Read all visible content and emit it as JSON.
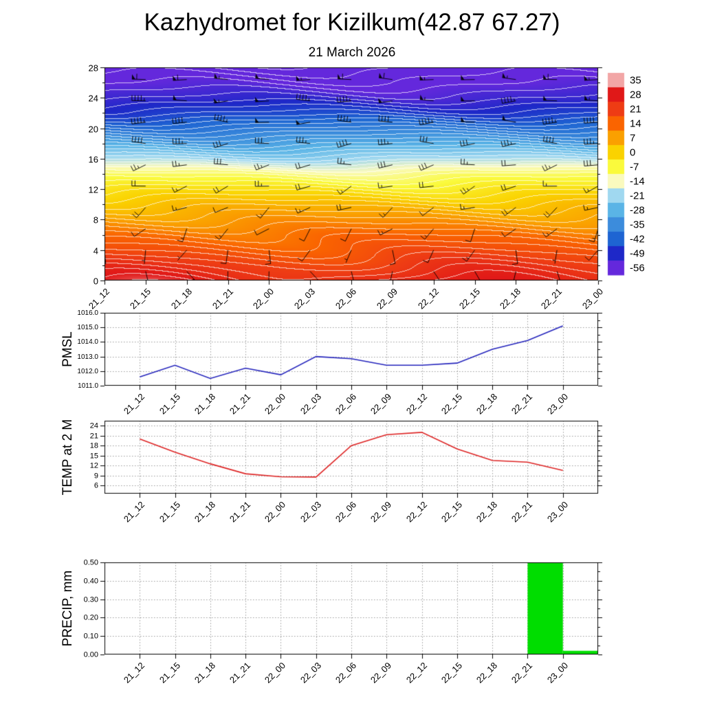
{
  "title": "Kazhydromet for Kizilkum(42.87 67.27)",
  "subtitle": "21 March 2026",
  "time_labels": [
    "21_12",
    "21_15",
    "21_18",
    "21_21",
    "22_00",
    "22_03",
    "22_06",
    "22_09",
    "22_12",
    "22_15",
    "22_18",
    "22_21",
    "23_00"
  ],
  "chart_data": [
    {
      "type": "heatmap",
      "name": "temp-height-cross-section",
      "ylabel": "",
      "x": [
        "21_12",
        "21_15",
        "21_18",
        "21_21",
        "22_00",
        "22_03",
        "22_06",
        "22_09",
        "22_12",
        "22_15",
        "22_18",
        "22_21",
        "23_00"
      ],
      "x_span_hours": 36,
      "ylim": [
        0,
        28
      ],
      "y_ticks": [
        0,
        4,
        8,
        12,
        16,
        20,
        24,
        28
      ],
      "y_minor_ticks": [
        2,
        6,
        10,
        14,
        18,
        22,
        26
      ],
      "colorbar": {
        "values": [
          35,
          28,
          21,
          14,
          7,
          0,
          -7,
          -14,
          -21,
          -28,
          -35,
          -42,
          -49,
          -56
        ],
        "colors": [
          "#f2a6a6",
          "#e01818",
          "#ee3c14",
          "#fa6400",
          "#faa000",
          "#fad200",
          "#fafa3c",
          "#fafabe",
          "#a0d8f0",
          "#5ab4e6",
          "#3c8cdc",
          "#1e64d2",
          "#1e28c8",
          "#6428dc"
        ]
      },
      "profile_heights_km": [
        0,
        2,
        4,
        6,
        8,
        10,
        12,
        14,
        15,
        16,
        18,
        20,
        22,
        24,
        26,
        28
      ],
      "profile_temps_c": [
        25.5,
        21.5,
        17,
        13,
        8,
        3,
        -3,
        -10,
        -15,
        -21,
        -30,
        -38,
        -46,
        -52,
        -56.5,
        -60
      ],
      "diurnal_amplitude_c": 3.5,
      "wave_amplitude_c": 1.8,
      "contour_interval_c": 2,
      "wind_levels": [
        {
          "height_km": 1.2,
          "dir_deg": 165,
          "speed_kt": 8
        },
        {
          "height_km": 4.0,
          "dir_deg": 195,
          "speed_kt": 10
        },
        {
          "height_km": 6.8,
          "dir_deg": 220,
          "speed_kt": 12
        },
        {
          "height_km": 9.6,
          "dir_deg": 240,
          "speed_kt": 15
        },
        {
          "height_km": 12.4,
          "dir_deg": 252,
          "speed_kt": 20
        },
        {
          "height_km": 15.2,
          "dir_deg": 260,
          "speed_kt": 25
        },
        {
          "height_km": 18.0,
          "dir_deg": 266,
          "speed_kt": 35
        },
        {
          "height_km": 20.8,
          "dir_deg": 270,
          "speed_kt": 45
        },
        {
          "height_km": 23.6,
          "dir_deg": 268,
          "speed_kt": 50
        },
        {
          "height_km": 26.4,
          "dir_deg": 272,
          "speed_kt": 55
        }
      ]
    },
    {
      "type": "line",
      "name": "pmsl",
      "ylabel": "PMSL",
      "line_color": "#2222bb",
      "ylim": [
        1011,
        1016
      ],
      "y_ticks": [
        1011,
        1012,
        1013,
        1014,
        1015,
        1016
      ],
      "y_tick_labels": [
        "1011.0",
        "1012.0",
        "1013.0",
        "1014.0",
        "1015.0",
        "1016.0"
      ],
      "x": [
        "21_12",
        "21_15",
        "21_18",
        "21_21",
        "22_00",
        "22_03",
        "22_06",
        "22_09",
        "22_12",
        "22_15",
        "22_18",
        "22_21",
        "23_00"
      ],
      "values": [
        1011.6,
        1012.4,
        1011.5,
        1012.2,
        1011.75,
        1013.0,
        1012.85,
        1012.4,
        1012.4,
        1012.55,
        1013.5,
        1014.1,
        1015.1
      ]
    },
    {
      "type": "line",
      "name": "temp-2m",
      "ylabel": "TEMP at 2 M",
      "line_color": "#dd2222",
      "ylim": [
        3.5,
        25.5
      ],
      "y_ticks": [
        6,
        9,
        12,
        15,
        18,
        21,
        24
      ],
      "y_tick_labels": [
        "6",
        "9",
        "12",
        "15",
        "18",
        "21",
        "24"
      ],
      "x": [
        "21_12",
        "21_15",
        "21_18",
        "21_21",
        "22_00",
        "22_03",
        "22_06",
        "22_09",
        "22_12",
        "22_15",
        "22_18",
        "22_21",
        "23_00"
      ],
      "values": [
        20,
        16,
        12.5,
        9.5,
        8.6,
        8.5,
        18,
        21.3,
        22,
        17,
        13.5,
        13,
        10.5
      ]
    },
    {
      "type": "bar",
      "name": "precip",
      "ylabel": "PRECIP, mm",
      "bar_color": "#00dd00",
      "ylim": [
        0,
        0.5
      ],
      "y_ticks": [
        0,
        0.1,
        0.2,
        0.3,
        0.4,
        0.5
      ],
      "y_tick_labels": [
        "0.00",
        "0.10",
        "0.20",
        "0.30",
        "0.40",
        "0.50"
      ],
      "x": [
        "21_12",
        "21_15",
        "21_18",
        "21_21",
        "22_00",
        "22_03",
        "22_06",
        "22_09",
        "22_12",
        "22_15",
        "22_18",
        "22_21",
        "23_00"
      ],
      "values": [
        0,
        0,
        0,
        0,
        0,
        0,
        0,
        0,
        0,
        0,
        0,
        0.5,
        0.02
      ]
    }
  ]
}
